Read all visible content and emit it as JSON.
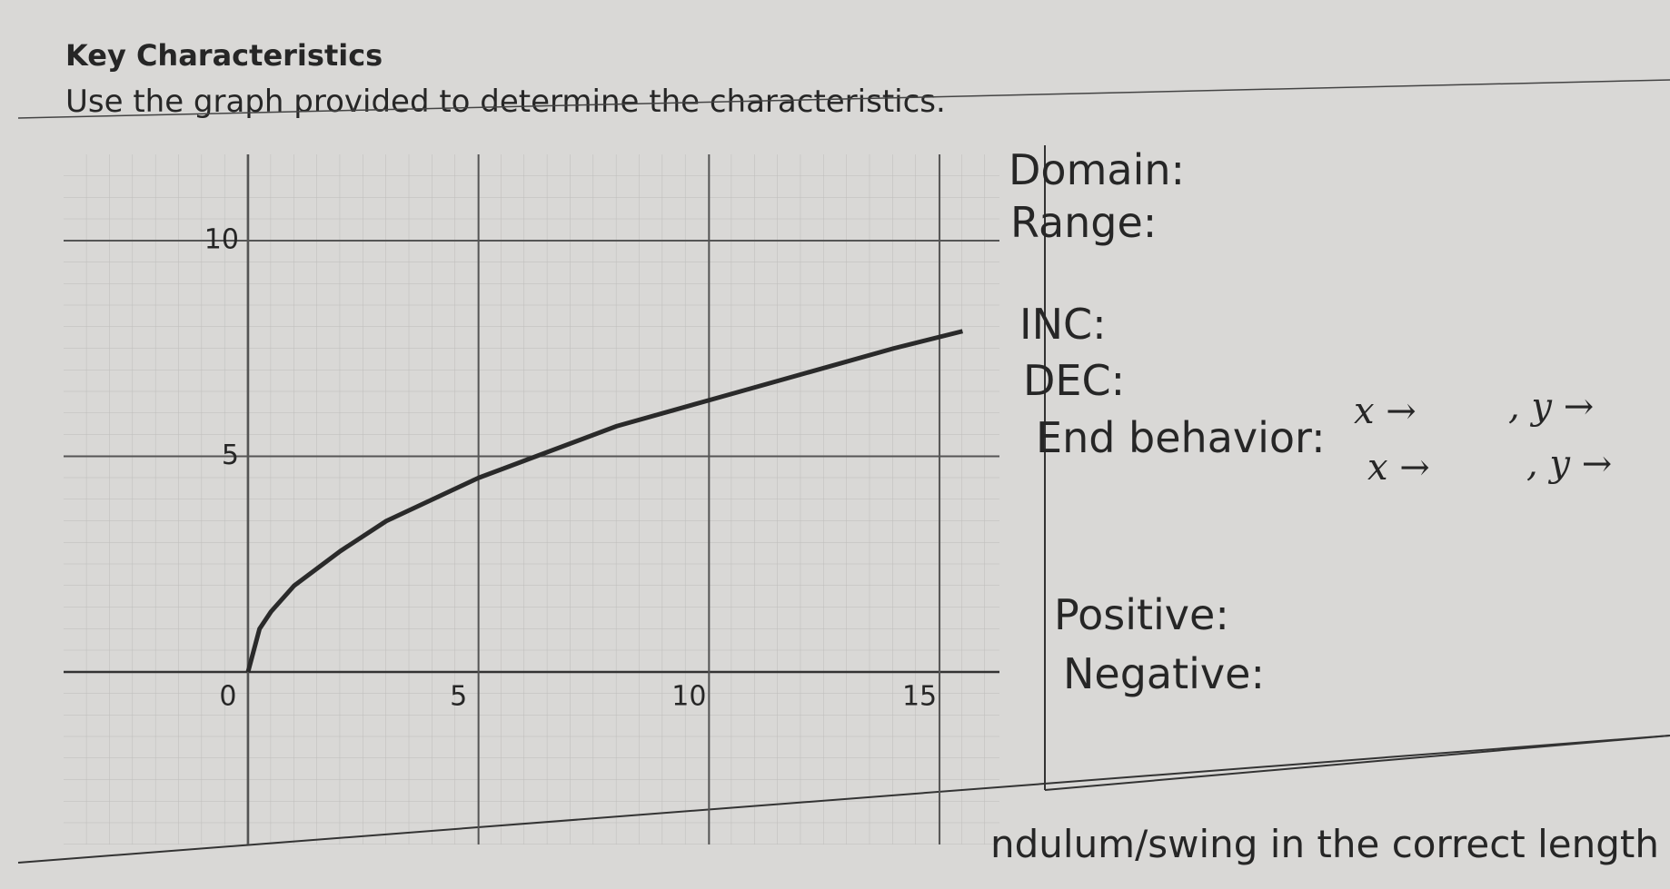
{
  "header": {
    "title": "Key Characteristics",
    "instructions": "Use the graph provided to determine the characteristics."
  },
  "graph": {
    "type": "line",
    "x": [
      0,
      0.25,
      0.5,
      1,
      2,
      3,
      4,
      5,
      6,
      8,
      10,
      12,
      14,
      15.5
    ],
    "y": [
      0,
      1,
      1.4,
      2,
      2.8,
      3.5,
      4,
      4.5,
      4.9,
      5.7,
      6.3,
      6.9,
      7.5,
      7.9
    ],
    "xlim": [
      -4,
      16.3
    ],
    "ylim": [
      -4,
      12
    ],
    "xticks": [
      0,
      5,
      10,
      15
    ],
    "yticks": [
      5,
      10
    ],
    "grid": true,
    "color": "#2a2a2a"
  },
  "fields": {
    "domain": "Domain:",
    "range": "Range:",
    "inc": "INC:",
    "dec": "DEC:",
    "end_behavior": "End behavior:",
    "end_rows": [
      {
        "x": "x →",
        "y": ", y →"
      },
      {
        "x": "x →",
        "y": ", y →"
      }
    ],
    "positive": "Positive:",
    "negative": "Negative:"
  },
  "footer": "ndulum/swing in the correct length (L)."
}
